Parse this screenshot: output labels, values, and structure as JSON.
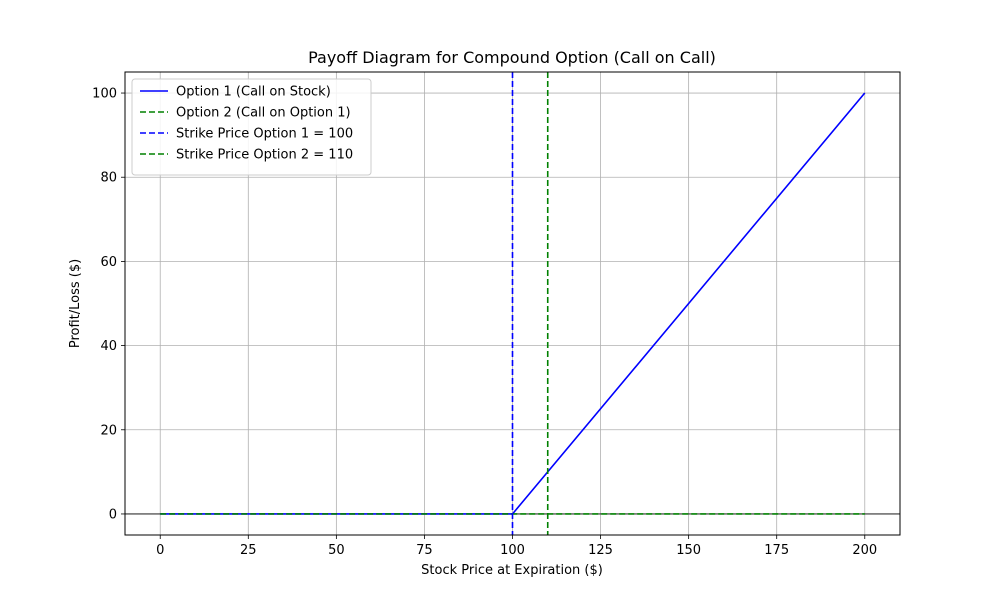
{
  "chart_data": {
    "type": "line",
    "title": "Payoff Diagram for Compound Option (Call on Call)",
    "xlabel": "Stock Price at Expiration ($)",
    "ylabel": "Profit/Loss ($)",
    "xlim": [
      -10,
      210
    ],
    "ylim": [
      -5,
      105
    ],
    "xticks": [
      0,
      25,
      50,
      75,
      100,
      125,
      150,
      175,
      200
    ],
    "yticks": [
      0,
      20,
      40,
      60,
      80,
      100
    ],
    "grid": true,
    "legend_position": "top-left",
    "series": [
      {
        "name": "Option 1 (Call on Stock)",
        "color": "#0000ff",
        "style": "solid",
        "x": [
          0,
          100,
          200
        ],
        "y": [
          0,
          0,
          100
        ]
      },
      {
        "name": "Option 2 (Call on Option 1)",
        "color": "#008000",
        "style": "dashed",
        "x": [
          0,
          200
        ],
        "y": [
          0,
          0
        ]
      }
    ],
    "vlines": [
      {
        "name": "Strike Price Option 1 = 100",
        "x": 100,
        "color": "#0000ff",
        "style": "dashed"
      },
      {
        "name": "Strike Price Option 2 = 110",
        "x": 110,
        "color": "#008000",
        "style": "dashed"
      }
    ],
    "hlines": [
      {
        "y": 0,
        "color": "#000000",
        "style": "solid"
      }
    ]
  }
}
